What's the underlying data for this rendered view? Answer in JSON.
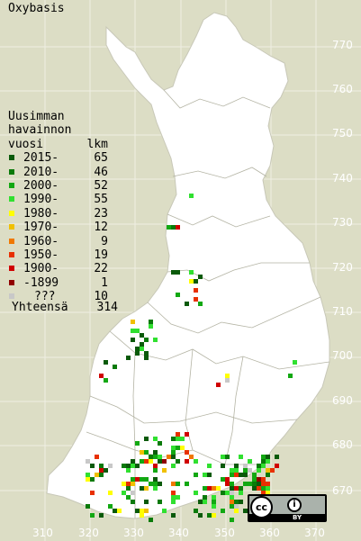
{
  "title": "Oxybasis",
  "legend": {
    "heading": [
      "Uusimman",
      "havainnon"
    ],
    "col_year": "vuosi",
    "col_count": "lkm",
    "rows": [
      {
        "label": "2015-",
        "count": "65",
        "color": "#0a5a0a"
      },
      {
        "label": "2010-",
        "count": "46",
        "color": "#0a7a0a"
      },
      {
        "label": "2000-",
        "count": "52",
        "color": "#12a812"
      },
      {
        "label": "1990-",
        "count": "55",
        "color": "#30e030"
      },
      {
        "label": "1980-",
        "count": "23",
        "color": "#ffff00"
      },
      {
        "label": "1970-",
        "count": "12",
        "color": "#f0c000"
      },
      {
        "label": "1960-",
        "count": "9",
        "color": "#f07800"
      },
      {
        "label": "1950-",
        "count": "19",
        "color": "#e83000"
      },
      {
        "label": "1900-",
        "count": "22",
        "color": "#d00000"
      },
      {
        "label": "-1899",
        "count": "1",
        "color": "#900000"
      },
      {
        "label": "???",
        "count": "10",
        "color": "#c8c8c8"
      }
    ],
    "total_label": "Yhteensä",
    "total_count": "314"
  },
  "y_ticks": [
    "770",
    "760",
    "750",
    "740",
    "730",
    "720",
    "710",
    "700",
    "690",
    "680",
    "670"
  ],
  "x_ticks": [
    "310",
    "320",
    "330",
    "340",
    "350",
    "360",
    "370"
  ],
  "license": {
    "cc": "cc",
    "by": "BY"
  }
}
